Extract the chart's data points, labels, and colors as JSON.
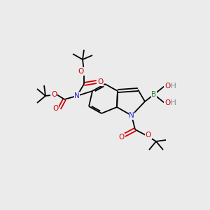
{
  "bg_color": "#ebebeb",
  "atom_colors": {
    "C": "#000000",
    "N": "#2222cc",
    "O": "#cc0000",
    "B": "#228822",
    "H": "#778899"
  },
  "fig_size": [
    3.0,
    3.0
  ],
  "dpi": 100
}
